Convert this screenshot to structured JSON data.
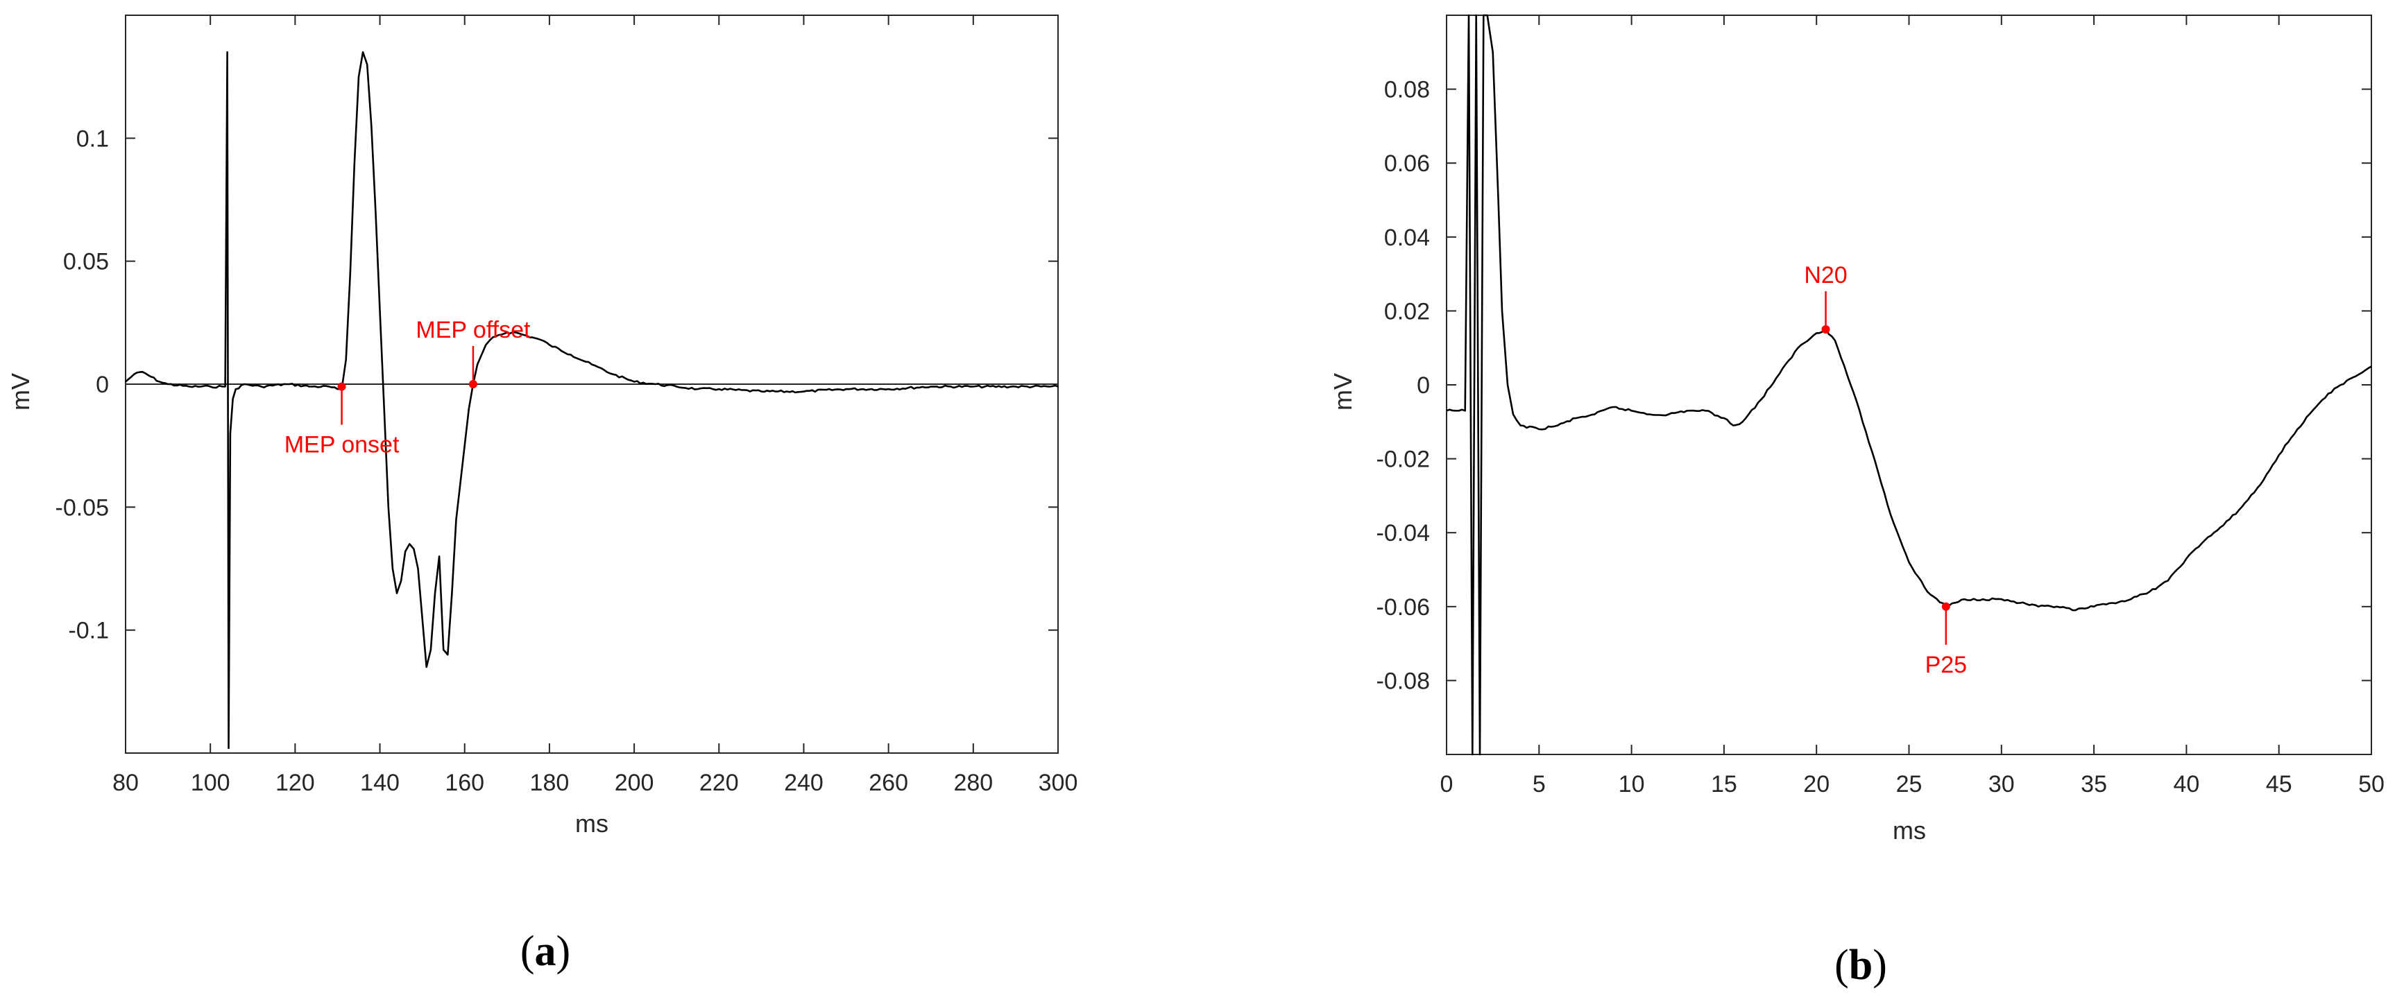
{
  "chart_data": [
    {
      "id": "a",
      "type": "line",
      "panel_label": "a",
      "xlabel": "ms",
      "ylabel": "mV",
      "xlim": [
        80,
        300
      ],
      "ylim": [
        -0.15,
        0.15
      ],
      "xticks": [
        80,
        100,
        120,
        140,
        160,
        180,
        200,
        220,
        240,
        260,
        280,
        300
      ],
      "yticks": [
        -0.1,
        -0.05,
        0,
        0.05,
        0.1
      ],
      "xtick_labels": [
        "80",
        "100",
        "120",
        "140",
        "160",
        "180",
        "200",
        "220",
        "240",
        "260",
        "280",
        "300"
      ],
      "ytick_labels": [
        "-0.1",
        "-0.05",
        "0",
        "0.05",
        "0.1"
      ],
      "baseline_y": 0,
      "grid": false,
      "series": [
        {
          "x": [
            80,
            82,
            84,
            86,
            88,
            90,
            95,
            100,
            103.5,
            104,
            104.3,
            104.7,
            105.3,
            106,
            108,
            112,
            118,
            124,
            128,
            130,
            131,
            132,
            133,
            134,
            135,
            136,
            137,
            138,
            139,
            140,
            141,
            142,
            143,
            144,
            145,
            146,
            147,
            148,
            149,
            150,
            151,
            152,
            153,
            154,
            155,
            156,
            157,
            158,
            159,
            160,
            161,
            162,
            163,
            164,
            165,
            166,
            168,
            170,
            172,
            174,
            176,
            178,
            180,
            185,
            190,
            195,
            200,
            205,
            210,
            215,
            220,
            230,
            240,
            250,
            260,
            270,
            280,
            290,
            300
          ],
          "y": [
            0.001,
            0.004,
            0.005,
            0.003,
            0.001,
            0.0,
            -0.001,
            -0.001,
            -0.001,
            0.135,
            -0.148,
            -0.02,
            -0.006,
            -0.002,
            0.0,
            -0.001,
            0.0,
            -0.001,
            -0.001,
            -0.002,
            -0.002,
            0.01,
            0.045,
            0.09,
            0.125,
            0.135,
            0.13,
            0.105,
            0.07,
            0.03,
            -0.01,
            -0.05,
            -0.075,
            -0.085,
            -0.08,
            -0.068,
            -0.065,
            -0.067,
            -0.075,
            -0.095,
            -0.115,
            -0.108,
            -0.085,
            -0.07,
            -0.108,
            -0.11,
            -0.085,
            -0.055,
            -0.04,
            -0.025,
            -0.01,
            0.0,
            0.008,
            0.012,
            0.016,
            0.018,
            0.02,
            0.021,
            0.021,
            0.02,
            0.019,
            0.018,
            0.016,
            0.012,
            0.008,
            0.004,
            0.001,
            0.0,
            -0.001,
            -0.002,
            -0.002,
            -0.003,
            -0.003,
            -0.002,
            -0.002,
            -0.001,
            -0.001,
            -0.001,
            -0.001
          ]
        }
      ],
      "annotations": [
        {
          "text": "MEP onset",
          "x": 131,
          "y": -0.001,
          "label_side": "below"
        },
        {
          "text": "MEP offset",
          "x": 162,
          "y": 0.0,
          "label_side": "above"
        }
      ]
    },
    {
      "id": "b",
      "type": "line",
      "panel_label": "b",
      "xlabel": "ms",
      "ylabel": "mV",
      "xlim": [
        0,
        50
      ],
      "ylim": [
        -0.1,
        0.1
      ],
      "xticks": [
        0,
        5,
        10,
        15,
        20,
        25,
        30,
        35,
        40,
        45,
        50
      ],
      "yticks": [
        -0.08,
        -0.06,
        -0.04,
        -0.02,
        0,
        0.02,
        0.04,
        0.06,
        0.08
      ],
      "xtick_labels": [
        "0",
        "5",
        "10",
        "15",
        "20",
        "25",
        "30",
        "35",
        "40",
        "45",
        "50"
      ],
      "ytick_labels": [
        "-0.08",
        "-0.06",
        "-0.04",
        "-0.02",
        "0",
        "0.02",
        "0.04",
        "0.06",
        "0.08"
      ],
      "grid": false,
      "series": [
        {
          "x": [
            0,
            0.5,
            1.0,
            1.2,
            1.4,
            1.6,
            1.8,
            2.0,
            2.2,
            2.5,
            2.8,
            3.0,
            3.3,
            3.6,
            4.0,
            5.0,
            6.0,
            7.0,
            8.0,
            9.0,
            10.0,
            11.0,
            12.0,
            13.0,
            14.0,
            15.0,
            15.5,
            16.0,
            17.0,
            18.0,
            19.0,
            20.0,
            20.5,
            21.0,
            22.0,
            23.0,
            24.0,
            25.0,
            26.0,
            27.0,
            28.0,
            29.0,
            30.0,
            31.0,
            32.0,
            33.0,
            34.0,
            35.0,
            36.0,
            37.0,
            38.0,
            39.0,
            40.0,
            41.0,
            42.0,
            43.0,
            44.0,
            45.0,
            46.0,
            47.0,
            48.0,
            49.0,
            50.0
          ],
          "y": [
            -0.007,
            -0.007,
            -0.007,
            0.1,
            -0.1,
            0.1,
            -0.1,
            0.1,
            0.1,
            0.09,
            0.05,
            0.02,
            0.0,
            -0.008,
            -0.011,
            -0.012,
            -0.011,
            -0.009,
            -0.008,
            -0.006,
            -0.007,
            -0.008,
            -0.008,
            -0.007,
            -0.007,
            -0.009,
            -0.011,
            -0.01,
            -0.004,
            0.003,
            0.01,
            0.014,
            0.015,
            0.012,
            -0.002,
            -0.018,
            -0.035,
            -0.048,
            -0.056,
            -0.06,
            -0.058,
            -0.058,
            -0.058,
            -0.059,
            -0.06,
            -0.06,
            -0.061,
            -0.06,
            -0.059,
            -0.058,
            -0.056,
            -0.053,
            -0.047,
            -0.042,
            -0.038,
            -0.033,
            -0.027,
            -0.019,
            -0.012,
            -0.006,
            -0.001,
            0.002,
            0.005
          ]
        }
      ],
      "annotations": [
        {
          "text": "N20",
          "x": 20.5,
          "y": 0.015,
          "label_side": "above"
        },
        {
          "text": "P25",
          "x": 27.0,
          "y": -0.06,
          "label_side": "below"
        }
      ]
    }
  ]
}
